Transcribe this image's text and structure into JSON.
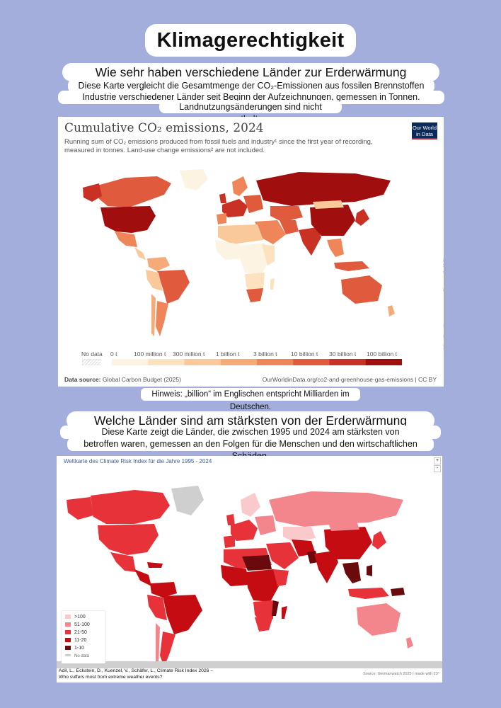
{
  "page": {
    "title": "Klimagerechtigkeit",
    "section1": {
      "question": "Wie sehr haben verschiedene Länder zur Erderwärmung beigetragen?",
      "description_lines": [
        "Diese Karte vergleicht die Gesamtmenge der CO₂-Emissionen aus fossilen Brennstoffen und der",
        "Industrie verschiedener Länder seit Beginn der Aufzeichnungen, gemessen in Tonnen. Emissionen aus",
        "Landnutzungsänderungen sind nicht enthalten."
      ],
      "note": "Hinweis: „billion“ im Englischen entspricht Milliarden im Deutschen."
    },
    "section2": {
      "question": "Welche Länder sind am stärksten von der Erderwärmung betroffen?",
      "description_lines": [
        "Diese Karte zeigt die Länder, die zwischen 1995 und 2024 am stärksten von Extremwetterereignissen",
        "betroffen waren, gemessen an den Folgen für die Menschen und den wirtschaftlichen Schäden."
      ]
    }
  },
  "map1": {
    "title": "Cumulative CO₂ emissions, 2024",
    "subtitle": "Running sum of CO₂ emissions produced from fossil fuels and industry¹ since the first year of recording, measured in tonnes. Land-use change emissions² are not included.",
    "logo_line1": "Our World",
    "logo_line2": "in Data",
    "license": "https://creativecommons.org/licenses/by/4.0/",
    "legend": {
      "no_data": "No data",
      "labels": [
        "0 t",
        "100 million t",
        "300 million t",
        "1 billion t",
        "3 billion t",
        "10 billion t",
        "30 billion t",
        "100 billion t"
      ],
      "colors": [
        "#fdf3e3",
        "#fce2bf",
        "#f9c99a",
        "#f5ab77",
        "#ee8659",
        "#e05a3d",
        "#c83124",
        "#a10e0e"
      ]
    },
    "data_source_label": "Data source:",
    "data_source": "Global Carbon Budget (2025)",
    "url": "OurWorldinData.org/co2-and-greenhouse-gas-emissions | CC BY"
  },
  "map2": {
    "title": "Weltkarte des Climate Risk Index für die Jahre 1995 - 2024",
    "zoom_in": "+",
    "zoom_out": "-",
    "legend": [
      {
        "label": ">100",
        "color": "#f9c9cc"
      },
      {
        "label": "51-100",
        "color": "#f3868c"
      },
      {
        "label": "21-50",
        "color": "#e8323a"
      },
      {
        "label": "11-20",
        "color": "#c40c12"
      },
      {
        "label": "1-10",
        "color": "#6b0a0c"
      },
      {
        "label": "No data",
        "color": "#cfcfcf"
      }
    ],
    "citation_line1": "Adil, L., Eckstein, D., Kuenzel, V., Schäfer, L., Climate Risk Index 2026 –",
    "citation_line2": "Who suffers most from extreme weather events?",
    "source": "Source: Germanwatch 2025 | made with 23°"
  }
}
